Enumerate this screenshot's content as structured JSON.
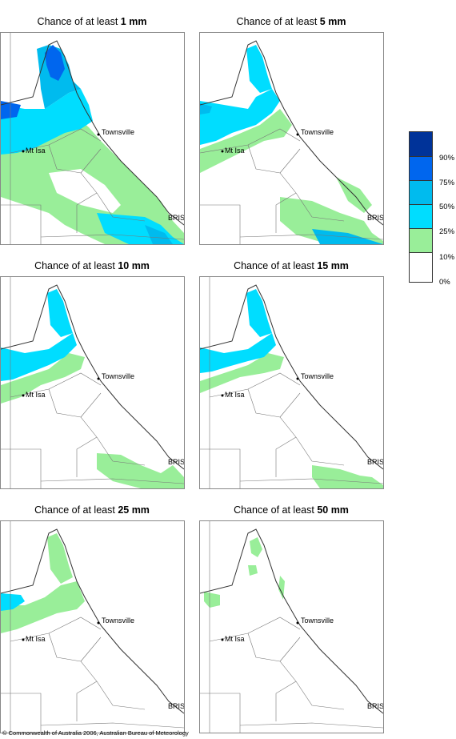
{
  "panels": [
    {
      "prefix": "Chance of at least ",
      "amount": "1 mm"
    },
    {
      "prefix": "Chance of at least ",
      "amount": "5 mm"
    },
    {
      "prefix": "Chance of at least ",
      "amount": "10 mm"
    },
    {
      "prefix": "Chance of at least ",
      "amount": "15 mm"
    },
    {
      "prefix": "Chance of at least ",
      "amount": "25 mm"
    },
    {
      "prefix": "Chance of at least ",
      "amount": "50 mm"
    }
  ],
  "cities": {
    "townsville": "Townsville",
    "mt_isa": "Mt Isa",
    "brisbane": "BRIS"
  },
  "legend": {
    "levels": [
      {
        "label": "90%",
        "color": "#003399"
      },
      {
        "label": "75%",
        "color": "#0066ee"
      },
      {
        "label": "50%",
        "color": "#00bbee"
      },
      {
        "label": "25%",
        "color": "#00ddff"
      },
      {
        "label": "10%",
        "color": "#99ee99"
      },
      {
        "label": "0%",
        "color": "#ffffff"
      }
    ]
  },
  "copyright": "© Commonwealth of Australia 2006, Australian Bureau of Meteorology"
}
